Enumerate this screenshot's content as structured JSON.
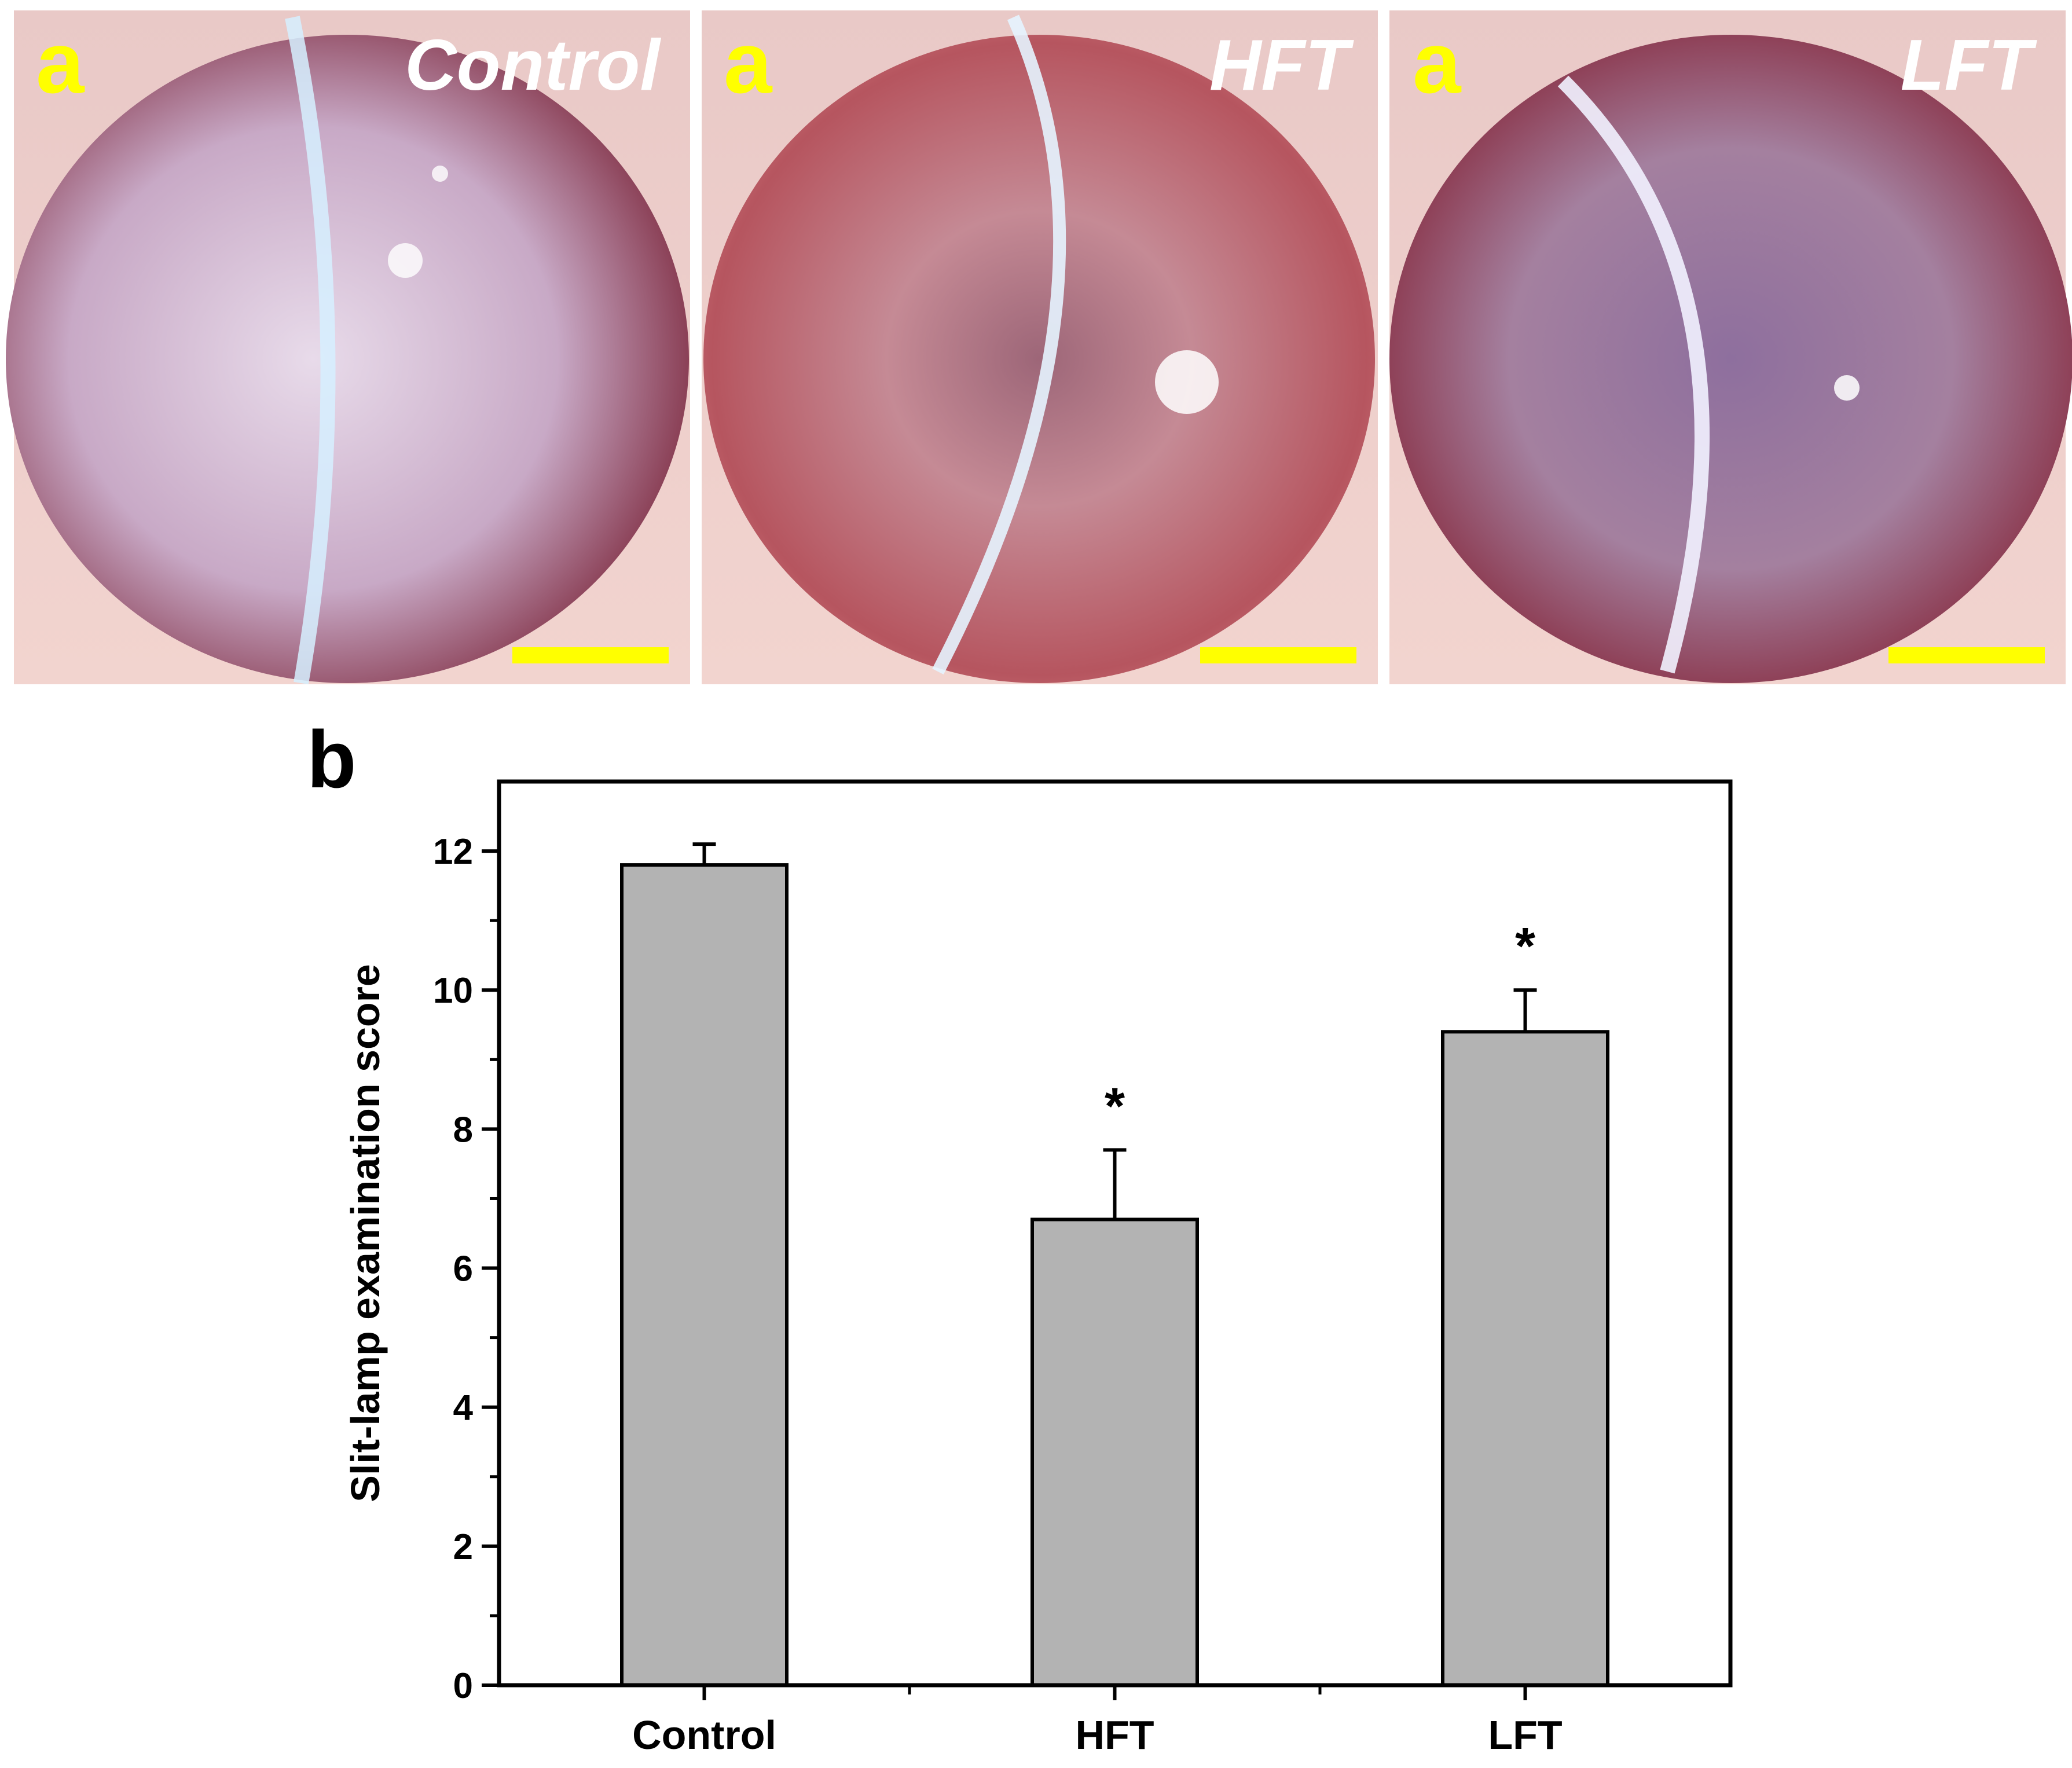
{
  "panel_a": {
    "panels": [
      {
        "letter": "a",
        "group": "Control"
      },
      {
        "letter": "a",
        "group": "HFT"
      },
      {
        "letter": "a",
        "group": "LFT"
      }
    ],
    "scale_bar_color": "#ffff00",
    "letter_color": "#ffff00"
  },
  "panel_b": {
    "letter": "b"
  },
  "chart_data": {
    "type": "bar",
    "categories": [
      "Control",
      "HFT",
      "LFT"
    ],
    "values": [
      11.8,
      6.7,
      9.4
    ],
    "errors": [
      0.3,
      1.0,
      0.6
    ],
    "significance": [
      "",
      "*",
      "*"
    ],
    "xlabel": "",
    "ylabel": "Slit-lamp examination score",
    "ylim": [
      0,
      13
    ],
    "yticks": [
      0,
      2,
      4,
      6,
      8,
      10,
      12
    ],
    "bar_color": "#b3b3b3",
    "grid": false
  }
}
